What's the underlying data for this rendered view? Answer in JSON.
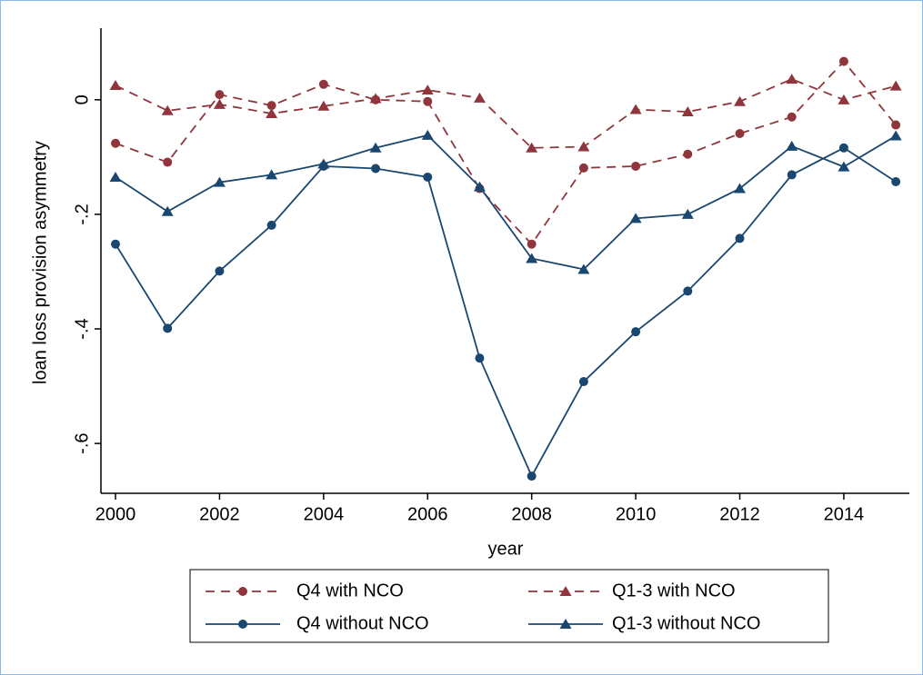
{
  "chart_data": {
    "type": "line",
    "x_label": "year",
    "y_label": "loan loss provision asymmetry",
    "x": [
      2000,
      2001,
      2002,
      2003,
      2004,
      2005,
      2006,
      2007,
      2008,
      2009,
      2010,
      2011,
      2012,
      2013,
      2014,
      2015
    ],
    "xlim": [
      1999.72,
      2015.26
    ],
    "xticks": [
      2000,
      2002,
      2004,
      2006,
      2008,
      2010,
      2012,
      2014
    ],
    "ylim": [
      -0.687,
      0.125
    ],
    "yticks": [
      {
        "value": -0.6,
        "label": "-.6"
      },
      {
        "value": -0.4,
        "label": "-.4"
      },
      {
        "value": -0.2,
        "label": "-.2"
      },
      0
    ],
    "series": [
      {
        "name": "Q4 with NCO",
        "color": "#90353b",
        "dash": "dashed",
        "marker": "circle",
        "values": [
          -0.076,
          -0.109,
          0.009,
          -0.01,
          0.027,
          0.0,
          -0.003,
          -0.155,
          -0.252,
          -0.119,
          -0.116,
          -0.095,
          -0.059,
          -0.03,
          0.067,
          -0.044
        ]
      },
      {
        "name": "Q1-3 with NCO",
        "color": "#90353b",
        "dash": "dashed",
        "marker": "triangle",
        "values": [
          0.025,
          -0.019,
          -0.008,
          -0.024,
          -0.011,
          0.002,
          0.017,
          0.003,
          -0.084,
          -0.082,
          -0.017,
          -0.021,
          -0.003,
          0.036,
          0.0,
          0.024
        ]
      },
      {
        "name": "Q4 without NCO",
        "color": "#1a476f",
        "dash": "solid",
        "marker": "circle",
        "values": [
          -0.252,
          -0.399,
          -0.299,
          -0.219,
          -0.116,
          -0.12,
          -0.135,
          -0.451,
          -0.657,
          -0.492,
          -0.405,
          -0.334,
          -0.242,
          -0.131,
          -0.084,
          -0.143
        ]
      },
      {
        "name": "Q1-3 without NCO",
        "color": "#1a476f",
        "dash": "solid",
        "marker": "triangle",
        "values": [
          -0.135,
          -0.195,
          -0.144,
          -0.131,
          -0.112,
          -0.084,
          -0.062,
          -0.152,
          -0.277,
          -0.296,
          -0.207,
          -0.2,
          -0.155,
          -0.081,
          -0.117,
          -0.063
        ]
      }
    ],
    "legend": "bottom"
  }
}
